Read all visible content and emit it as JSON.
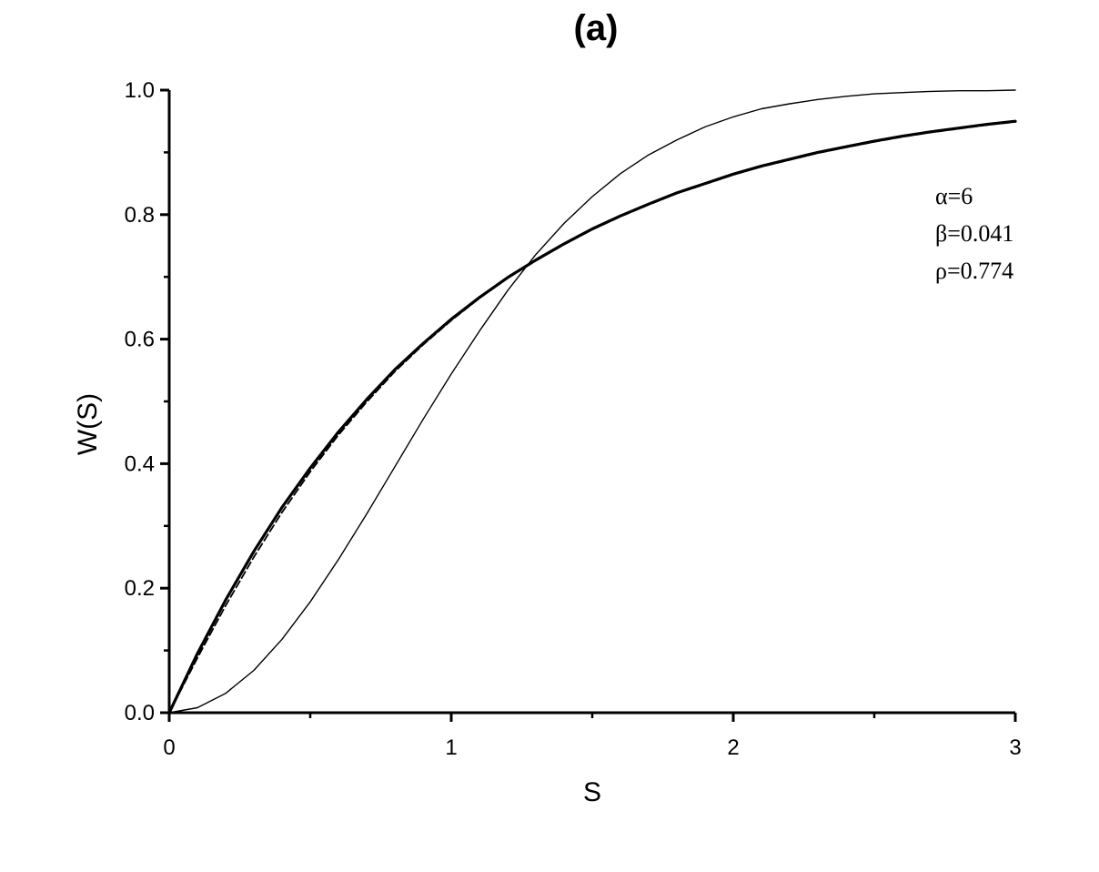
{
  "chart_data": {
    "type": "line",
    "title": "(a)",
    "xlabel": "S",
    "ylabel": "W(S)",
    "xlim": [
      0,
      3
    ],
    "ylim": [
      0,
      1
    ],
    "x_ticks": [
      0,
      1,
      2,
      3
    ],
    "x_tick_labels": [
      "0",
      "1",
      "2",
      "3"
    ],
    "y_ticks": [
      0,
      0.2,
      0.4,
      0.6,
      0.8,
      1.0
    ],
    "y_tick_labels": [
      "0.0",
      "0.2",
      "0.4",
      "0.6",
      "0.8",
      "1.0"
    ],
    "grid": false,
    "legend": "none",
    "annotations": [
      "α=6",
      "β=0.041",
      "ρ=0.774"
    ],
    "series": [
      {
        "style": "thin",
        "x": [
          0,
          0.1,
          0.2,
          0.3,
          0.4,
          0.5,
          0.6,
          0.7,
          0.8,
          0.9,
          1.0,
          1.1,
          1.2,
          1.3,
          1.4,
          1.5,
          1.6,
          1.7,
          1.8,
          1.9,
          2.0,
          2.1,
          2.2,
          2.3,
          2.4,
          2.5,
          2.6,
          2.7,
          2.8,
          2.9,
          3.0
        ],
        "values": [
          0.0,
          0.008,
          0.031,
          0.068,
          0.118,
          0.178,
          0.246,
          0.319,
          0.395,
          0.471,
          0.544,
          0.613,
          0.678,
          0.736,
          0.786,
          0.829,
          0.866,
          0.896,
          0.92,
          0.941,
          0.957,
          0.97,
          0.978,
          0.985,
          0.99,
          0.994,
          0.996,
          0.998,
          0.999,
          0.999,
          1.0
        ]
      },
      {
        "style": "thick",
        "x": [
          0,
          0.1,
          0.2,
          0.3,
          0.4,
          0.5,
          0.6,
          0.7,
          0.8,
          0.9,
          1.0,
          1.1,
          1.2,
          1.3,
          1.4,
          1.5,
          1.6,
          1.7,
          1.8,
          1.9,
          2.0,
          2.1,
          2.2,
          2.3,
          2.4,
          2.5,
          2.6,
          2.7,
          2.8,
          2.9,
          3.0
        ],
        "values": [
          0.0,
          0.095,
          0.181,
          0.259,
          0.33,
          0.393,
          0.451,
          0.503,
          0.551,
          0.593,
          0.632,
          0.667,
          0.699,
          0.727,
          0.753,
          0.777,
          0.798,
          0.817,
          0.835,
          0.85,
          0.865,
          0.878,
          0.889,
          0.9,
          0.909,
          0.918,
          0.926,
          0.933,
          0.939,
          0.945,
          0.95
        ]
      },
      {
        "style": "dashed",
        "x": [
          0,
          0.1,
          0.2,
          0.3,
          0.4,
          0.5,
          0.6,
          0.7,
          0.8,
          0.9,
          1.0,
          1.1,
          1.2,
          1.3,
          1.4,
          1.5,
          1.6,
          1.7,
          1.8,
          1.9,
          2.0,
          2.1,
          2.2,
          2.3,
          2.4,
          2.5,
          2.6,
          2.7,
          2.8,
          2.9,
          3.0
        ],
        "values": [
          0.0,
          0.088,
          0.172,
          0.25,
          0.322,
          0.387,
          0.446,
          0.499,
          0.548,
          0.591,
          0.63,
          0.666,
          0.698,
          0.726,
          0.752,
          0.776,
          0.797,
          0.816,
          0.834,
          0.849,
          0.864,
          0.877,
          0.888,
          0.899,
          0.908,
          0.917,
          0.925,
          0.932,
          0.938,
          0.944,
          0.949
        ]
      }
    ]
  }
}
